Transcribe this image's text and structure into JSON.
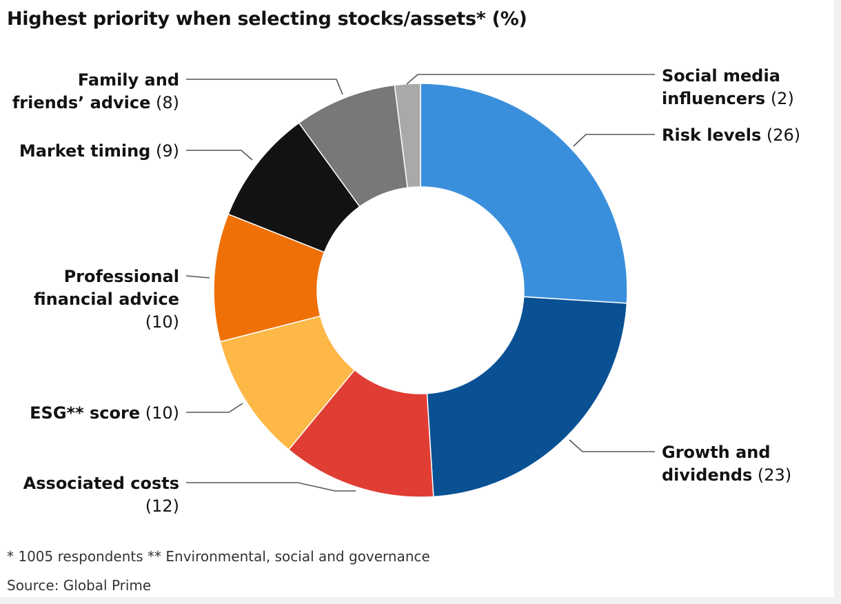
{
  "title": "Highest priority when selecting stocks/assets* (%)",
  "footnote": "* 1005 respondents ** Environmental, social and governance",
  "source": "Source: Global Prime",
  "chart_data": {
    "type": "pie",
    "variant": "donut",
    "title": "Highest priority when selecting stocks/assets* (%)",
    "unit": "%",
    "slices": [
      {
        "key": "risk",
        "label": "Risk levels",
        "value": 26,
        "color": "#3a8fdc"
      },
      {
        "key": "growth",
        "label": "Growth and dividends",
        "value": 23,
        "color": "#0a5194"
      },
      {
        "key": "costs",
        "label": "Associated costs",
        "value": 12,
        "color": "#e03d34"
      },
      {
        "key": "esg",
        "label": "ESG** score",
        "value": 10,
        "color": "#fdb848"
      },
      {
        "key": "professional",
        "label": "Professional financial advice",
        "value": 10,
        "color": "#ef7006"
      },
      {
        "key": "timing",
        "label": "Market timing",
        "value": 9,
        "color": "#121212"
      },
      {
        "key": "family",
        "label": "Family and friends’ advice",
        "value": 8,
        "color": "#787878"
      },
      {
        "key": "social",
        "label": "Social media influencers",
        "value": 2,
        "color": "#a9a9a9"
      }
    ],
    "labels": {
      "social": {
        "lines": [
          "Social media",
          "influencers"
        ],
        "value": "(2)"
      },
      "risk": {
        "lines": [
          "Risk levels"
        ],
        "value": "(26)"
      },
      "growth": {
        "lines": [
          "Growth and",
          "dividends"
        ],
        "value": "(23)"
      },
      "costs": {
        "lines": [
          "Associated costs"
        ],
        "value": "(12)"
      },
      "esg": {
        "lines": [
          "ESG** score"
        ],
        "value": "(10)"
      },
      "professional": {
        "lines": [
          "Professional",
          "financial advice"
        ],
        "value": "(10)"
      },
      "timing": {
        "lines": [
          "Market timing"
        ],
        "value": "(9)"
      },
      "family": {
        "lines": [
          "Family and",
          "friends’ advice"
        ],
        "value": "(8)"
      }
    }
  }
}
